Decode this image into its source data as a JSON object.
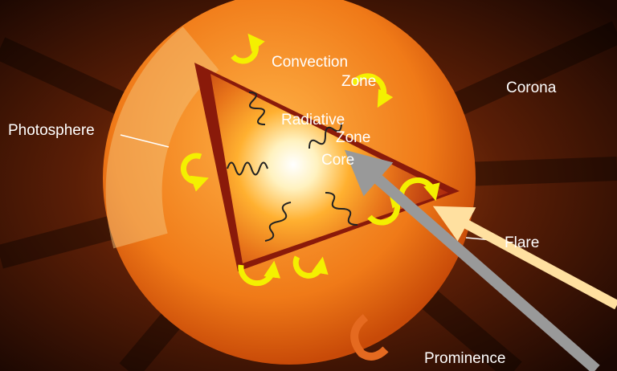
{
  "labels": {
    "convection": {
      "lines": [
        "Convection",
        "Zone"
      ]
    },
    "radiative": {
      "lines": [
        "Radiative",
        "Zone"
      ]
    },
    "core": "Core",
    "corona": "Corona",
    "photosphere": "Photosphere",
    "flare": "Flare",
    "prominence": "Prominence"
  }
}
